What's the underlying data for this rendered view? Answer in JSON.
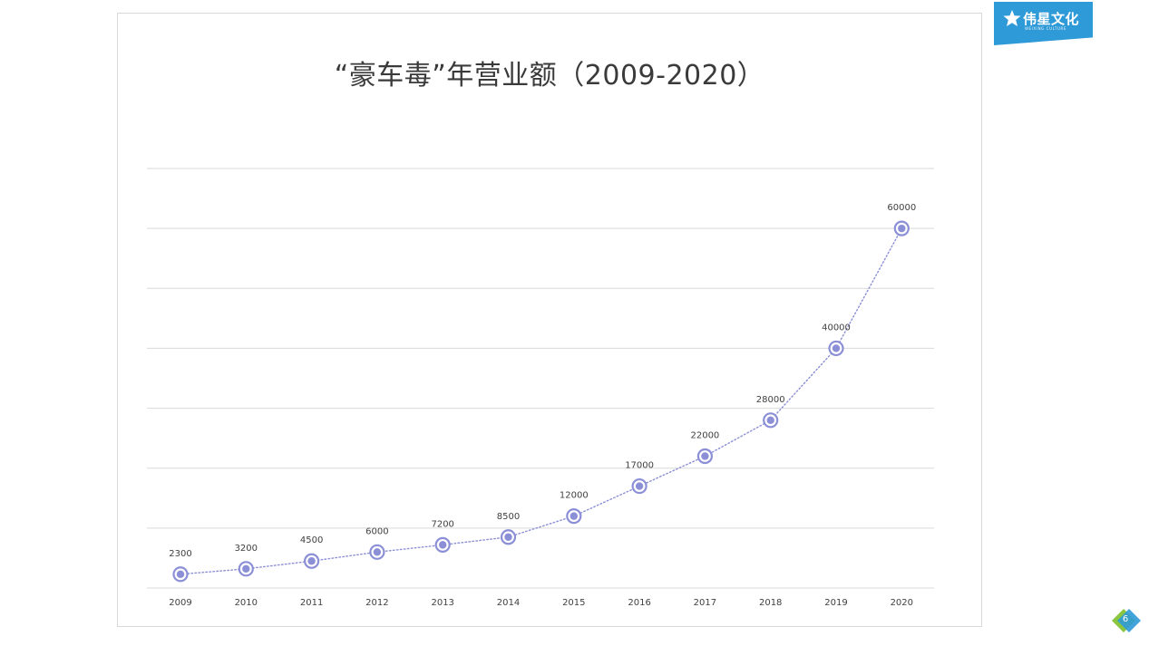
{
  "slide": {
    "page_number": "6",
    "logo": {
      "name": "伟星文化",
      "subtitle": "WEIXING CULTURE",
      "icon": "star-icon",
      "color": "#2f9ad8"
    }
  },
  "chart_data": {
    "type": "line",
    "title": "“豪车毒”年营业额（2009-2020）",
    "xlabel": "",
    "ylabel": "",
    "categories": [
      "2009",
      "2010",
      "2011",
      "2012",
      "2013",
      "2014",
      "2015",
      "2016",
      "2017",
      "2018",
      "2019",
      "2020"
    ],
    "series": [
      {
        "values": [
          2300,
          3200,
          4500,
          6000,
          7200,
          8500,
          12000,
          17000,
          22000,
          28000,
          40000,
          60000
        ],
        "color": "#8b8fd6",
        "line_style": "dotted",
        "marker": "circle"
      }
    ],
    "ylim": [
      0,
      70000
    ],
    "y_gridline_step": 10000,
    "grid": true,
    "data_labels": true,
    "y_tick_labels_shown": false,
    "legend": "none"
  }
}
